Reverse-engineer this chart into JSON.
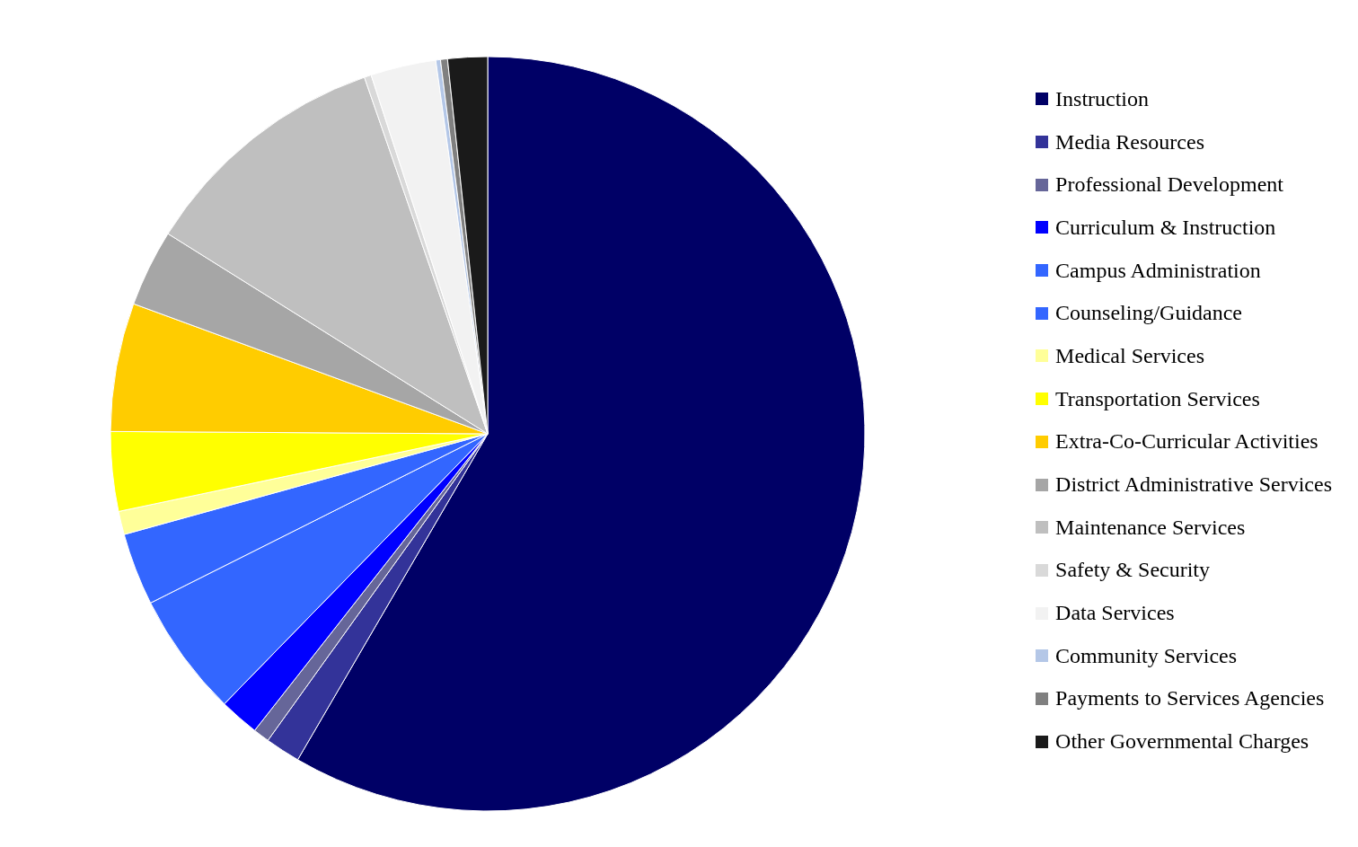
{
  "chart_data": {
    "type": "pie",
    "categories": [
      "Instruction",
      "Media Resources",
      "Professional Development",
      "Curriculum & Instruction",
      "Campus Administration",
      "Counseling/Guidance",
      "Medical Services",
      "Transportation Services",
      "Extra-Co-Curricular Activities",
      "District Administrative Services",
      "Maintenance Services",
      "Safety & Security",
      "Data Services",
      "Community Services",
      "Payments to  Services Agencies",
      "Other Governmental Charges"
    ],
    "values": [
      58.4,
      1.5,
      0.7,
      1.7,
      5.3,
      3.1,
      1.0,
      3.4,
      5.5,
      3.3,
      10.8,
      0.3,
      2.8,
      0.2,
      0.3,
      1.7
    ],
    "colors": [
      "#000066",
      "#333399",
      "#666699",
      "#0000ff",
      "#3366ff",
      "#3366ff",
      "#ffff99",
      "#ffff00",
      "#ffcc00",
      "#a6a6a6",
      "#bfbfbf",
      "#d9d9d9",
      "#f2f2f2",
      "#b4c7e7",
      "#808080",
      "#1a1a1a"
    ],
    "legend": "right"
  }
}
